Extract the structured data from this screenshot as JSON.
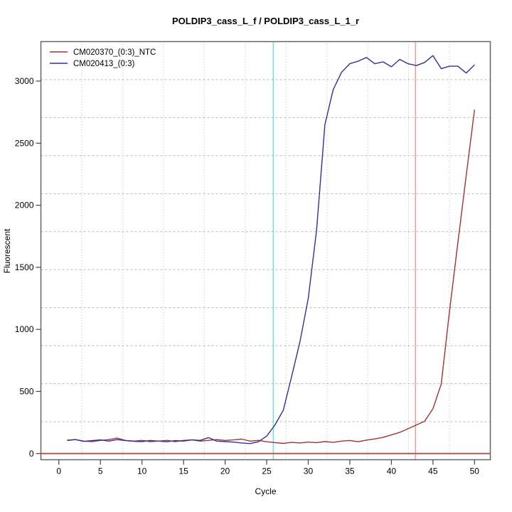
{
  "chart_data": {
    "type": "line",
    "title": "POLDIP3_cass_L_f / POLDIP3_cass_L_1_r",
    "xlabel": "Cycle",
    "ylabel": "Fluorescent",
    "xlim": [
      -2.16,
      51.9
    ],
    "ylim": [
      -50,
      3318
    ],
    "x_ticks": [
      0,
      5,
      10,
      15,
      20,
      25,
      30,
      35,
      40,
      45,
      50
    ],
    "y_ticks": [
      0,
      500,
      1000,
      1500,
      2000,
      2500,
      3000
    ],
    "grid": {
      "divisions_x": 11,
      "divisions_y": 11,
      "vertical_style": "dotted",
      "horizontal_style": "dashed",
      "color": "#b8b8b8"
    },
    "legend_position": "top-left",
    "x": [
      1,
      2,
      3,
      4,
      5,
      6,
      7,
      8,
      9,
      10,
      11,
      12,
      13,
      14,
      15,
      16,
      17,
      18,
      19,
      20,
      21,
      22,
      23,
      24,
      25,
      26,
      27,
      28,
      29,
      30,
      31,
      32,
      33,
      34,
      35,
      36,
      37,
      38,
      39,
      40,
      41,
      42,
      43,
      44,
      45,
      46,
      47,
      48,
      49,
      50
    ],
    "series": [
      {
        "name": "CM020370_(0:3)_NTC",
        "color": "#a03434",
        "values": [
          108,
          112,
          100,
          96,
          106,
          112,
          124,
          106,
          100,
          106,
          96,
          100,
          106,
          96,
          106,
          110,
          100,
          106,
          112,
          106,
          110,
          116,
          100,
          106,
          95,
          88,
          82,
          90,
          85,
          92,
          88,
          96,
          90,
          100,
          105,
          95,
          108,
          118,
          130,
          150,
          170,
          200,
          230,
          260,
          360,
          560,
          1150,
          1700,
          2240,
          2770
        ]
      },
      {
        "name": "CM020413_(0:3)",
        "color": "#30309c",
        "values": [
          105,
          112,
          98,
          104,
          110,
          100,
          112,
          104,
          99,
          96,
          105,
          100,
          95,
          104,
          100,
          110,
          106,
          128,
          100,
          96,
          92,
          85,
          80,
          95,
          140,
          230,
          350,
          620,
          900,
          1250,
          1800,
          2650,
          2930,
          3070,
          3140,
          3160,
          3190,
          3140,
          3155,
          3115,
          3175,
          3140,
          3125,
          3150,
          3205,
          3100,
          3120,
          3120,
          3065,
          3130
        ]
      }
    ],
    "markers": {
      "vlines": [
        {
          "x": 25.8,
          "color": "#7adede"
        },
        {
          "x": 42.9,
          "color": "#f2a0a0"
        }
      ],
      "hlines": [
        {
          "y": 0,
          "color": "#c25555"
        }
      ]
    }
  }
}
